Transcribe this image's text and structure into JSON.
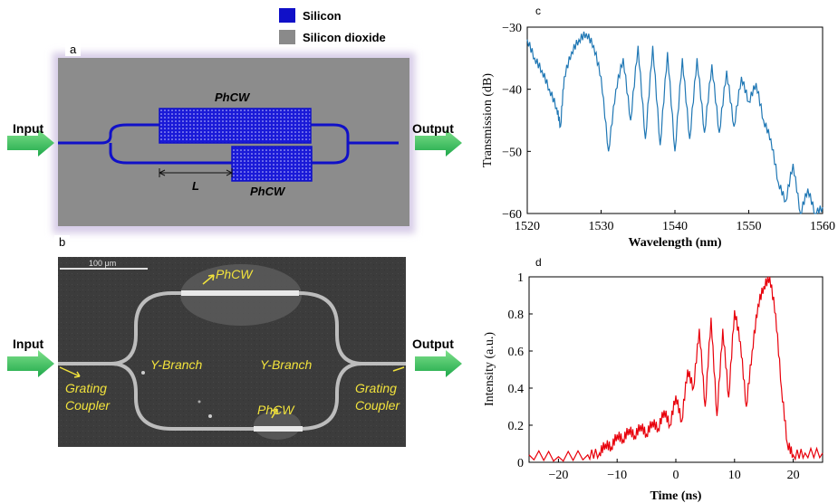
{
  "legend": {
    "items": [
      {
        "label": "Silicon",
        "color": "#1010c8"
      },
      {
        "label": "Silicon dioxide",
        "color": "#8a8a8a"
      }
    ]
  },
  "panel_a": {
    "tag": "a",
    "input_label": "Input",
    "output_label": "Output",
    "phcw_top": "PhCW",
    "phcw_bottom": "PhCW",
    "length_label": "L",
    "bg_color": "#8c8c8c",
    "waveguide_color": "#1010c8"
  },
  "panel_b": {
    "tag": "b",
    "input_label": "Input",
    "output_label": "Output",
    "scale_bar": "100 μm",
    "phcw_top": "PhCW",
    "phcw_bottom": "PhCW",
    "y_branch_left": "Y-Branch",
    "y_branch_right": "Y-Branch",
    "grating_left_1": "Grating",
    "grating_left_2": "Coupler",
    "grating_right_1": "Grating",
    "grating_right_2": "Coupler",
    "text_color": "#f2e33c"
  },
  "chart_data": [
    {
      "panel": "c",
      "type": "line",
      "xlabel": "Wavelength (nm)",
      "ylabel": "Transmission (dB)",
      "xlim": [
        1520,
        1560
      ],
      "ylim": [
        -60,
        -30
      ],
      "x_ticks": [
        1520,
        1530,
        1540,
        1550,
        1560
      ],
      "y_ticks": [
        -30,
        -40,
        -50,
        -60
      ],
      "color": "#1f77b4",
      "x": [
        1520,
        1521,
        1522,
        1523,
        1524,
        1524.5,
        1525,
        1526,
        1527,
        1528,
        1529,
        1530,
        1531,
        1532,
        1533,
        1534,
        1535,
        1536,
        1537,
        1538,
        1539,
        1540,
        1541,
        1542,
        1543,
        1544,
        1545,
        1546,
        1547,
        1548,
        1549,
        1550,
        1551,
        1552,
        1553,
        1554,
        1555,
        1556,
        1557,
        1558,
        1559,
        1560
      ],
      "y": [
        -32,
        -35,
        -37,
        -40,
        -43,
        -46,
        -38,
        -34,
        -32,
        -31,
        -33,
        -38,
        -50,
        -40,
        -35,
        -45,
        -33,
        -48,
        -33,
        -49,
        -34,
        -50,
        -35,
        -48,
        -35,
        -47,
        -36,
        -47,
        -37,
        -46,
        -38,
        -42,
        -39,
        -45,
        -48,
        -55,
        -58,
        -52,
        -60,
        -56,
        -60,
        -59
      ]
    },
    {
      "panel": "d",
      "type": "line",
      "xlabel": "Time (ns)",
      "ylabel": "Intensity (a.u.)",
      "xlim": [
        -25,
        25
      ],
      "ylim": [
        0,
        1
      ],
      "x_ticks": [
        -20,
        -10,
        0,
        10,
        20
      ],
      "y_ticks": [
        0,
        0.2,
        0.4,
        0.6,
        0.8,
        1
      ],
      "color": "#e8000b",
      "x": [
        -25,
        -20,
        -15,
        -13,
        -12,
        -11,
        -10,
        -9,
        -8,
        -7,
        -6,
        -5,
        -4,
        -3,
        -2,
        -1,
        0,
        1,
        2,
        3,
        4,
        5,
        6,
        7,
        8,
        9,
        10,
        11,
        12,
        13,
        14,
        15,
        16,
        17,
        18,
        19,
        20,
        22,
        25
      ],
      "y": [
        0.04,
        0.03,
        0.04,
        0.05,
        0.1,
        0.08,
        0.15,
        0.12,
        0.18,
        0.14,
        0.2,
        0.15,
        0.22,
        0.18,
        0.28,
        0.2,
        0.36,
        0.22,
        0.5,
        0.4,
        0.72,
        0.3,
        0.78,
        0.25,
        0.72,
        0.35,
        0.82,
        0.65,
        0.3,
        0.6,
        0.85,
        0.95,
        1.0,
        0.8,
        0.4,
        0.1,
        0.04,
        0.05,
        0.05
      ]
    }
  ]
}
